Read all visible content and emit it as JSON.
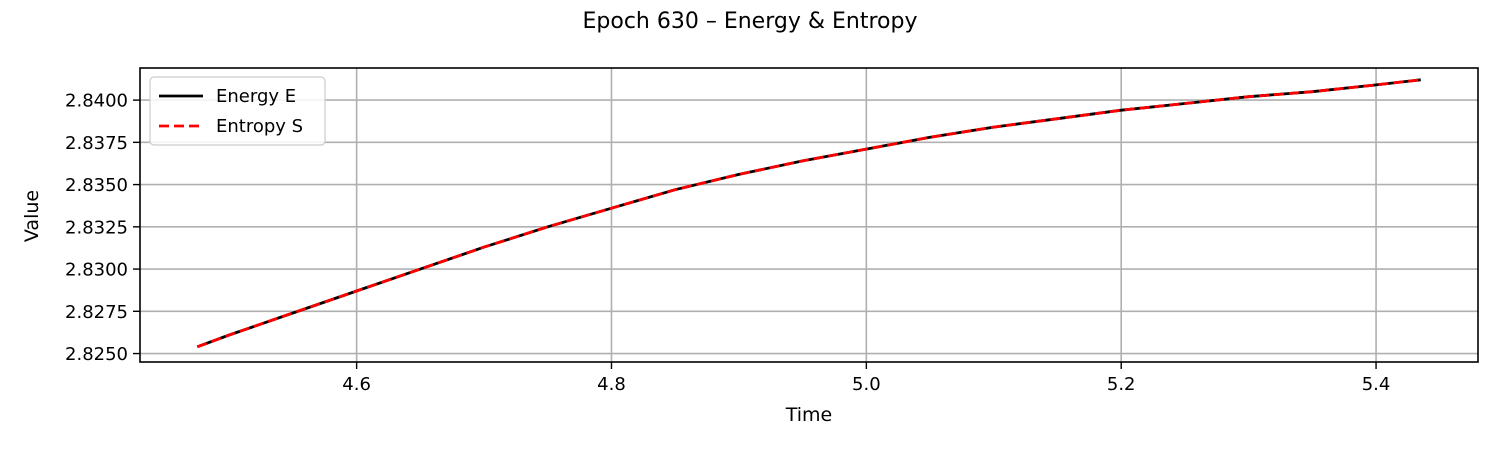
{
  "chart_data": {
    "type": "line",
    "title": "Epoch 630 – Energy & Entropy",
    "xlabel": "Time",
    "ylabel": "Value",
    "xlim": [
      4.43,
      5.48
    ],
    "ylim": [
      2.8245,
      2.8419
    ],
    "xticks": [
      4.6,
      4.8,
      5.0,
      5.2,
      5.4
    ],
    "xtick_labels": [
      "4.6",
      "4.8",
      "5.0",
      "5.2",
      "5.4"
    ],
    "yticks": [
      2.825,
      2.8275,
      2.83,
      2.8325,
      2.835,
      2.8375,
      2.84
    ],
    "ytick_labels": [
      "2.8250",
      "2.8275",
      "2.8300",
      "2.8325",
      "2.8350",
      "2.8375",
      "2.8400"
    ],
    "grid": true,
    "legend_position": "top-left",
    "x": [
      4.475,
      4.5,
      4.55,
      4.6,
      4.65,
      4.7,
      4.75,
      4.8,
      4.85,
      4.9,
      4.95,
      5.0,
      5.05,
      5.1,
      5.15,
      5.2,
      5.25,
      5.3,
      5.35,
      5.4,
      5.435
    ],
    "series": [
      {
        "name": "Energy E",
        "color": "#000000",
        "style": "solid",
        "values": [
          2.8254,
          2.8261,
          2.8274,
          2.8287,
          2.83,
          2.8313,
          2.8325,
          2.8336,
          2.8347,
          2.8356,
          2.8364,
          2.8371,
          2.8378,
          2.8384,
          2.8389,
          2.8394,
          2.8398,
          2.8402,
          2.8405,
          2.8409,
          2.8412
        ]
      },
      {
        "name": "Entropy S",
        "color": "#ff0000",
        "style": "dashed",
        "values": [
          2.8254,
          2.8261,
          2.8274,
          2.8287,
          2.83,
          2.8313,
          2.8325,
          2.8336,
          2.8347,
          2.8356,
          2.8364,
          2.8371,
          2.8378,
          2.8384,
          2.8389,
          2.8394,
          2.8398,
          2.8402,
          2.8405,
          2.8409,
          2.8412
        ]
      }
    ]
  }
}
